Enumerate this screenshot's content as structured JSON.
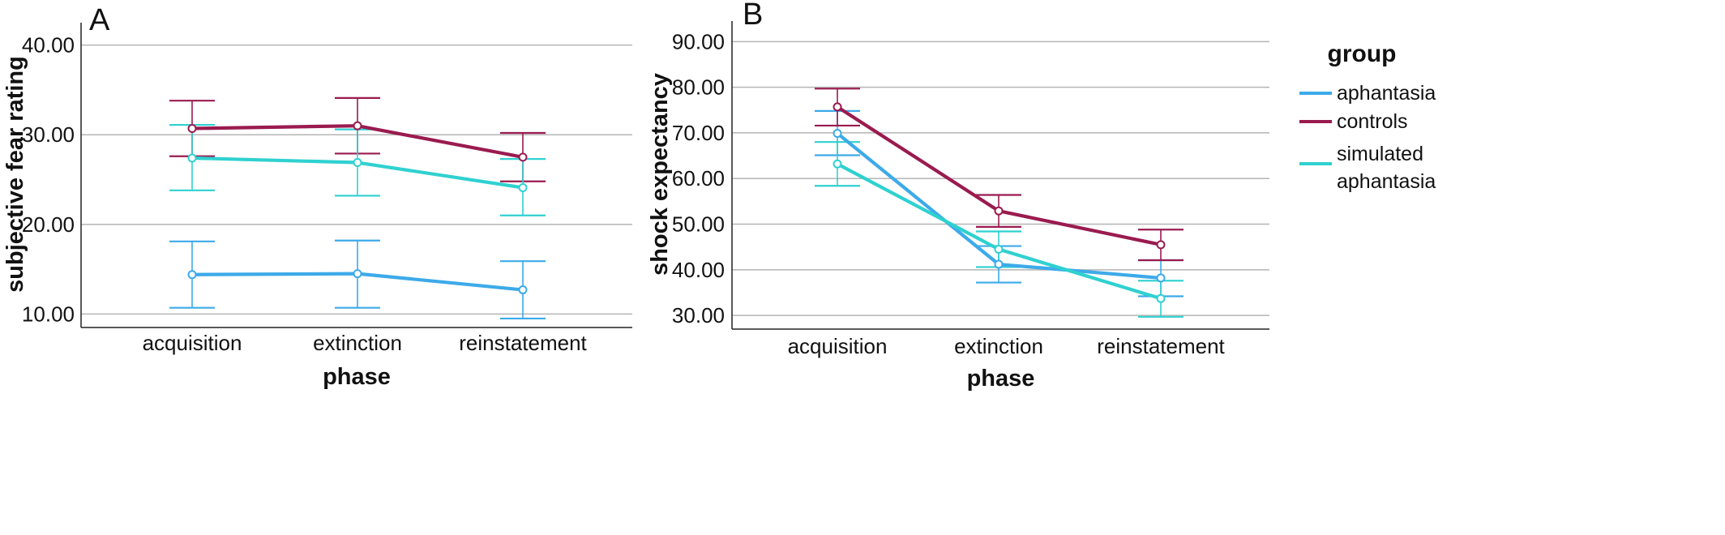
{
  "chart_data": [
    {
      "type": "line",
      "panel": "A",
      "xlabel": "phase",
      "ylabel": "subjective fear rating",
      "categories": [
        "acquisition",
        "extinction",
        "reinstatement"
      ],
      "ylim": [
        8.5,
        42.5
      ],
      "yticks": [
        10,
        20,
        30,
        40
      ],
      "ytick_labels": [
        "10.00",
        "20.00",
        "30.00",
        "40.00"
      ],
      "grid": "horizontal",
      "series": [
        {
          "name": "aphantasia",
          "color": "#3daae9",
          "values": [
            14.4,
            14.5,
            12.7
          ],
          "err_low": [
            10.7,
            10.7,
            9.5
          ],
          "err_high": [
            18.1,
            18.2,
            15.9
          ]
        },
        {
          "name": "controls",
          "color": "#9a1b4f",
          "values": [
            30.7,
            31.0,
            27.5
          ],
          "err_low": [
            27.6,
            27.9,
            24.8
          ],
          "err_high": [
            33.8,
            34.1,
            30.2
          ]
        },
        {
          "name": "simulated aphantasia",
          "color": "#2fd1d0",
          "values": [
            27.4,
            26.9,
            24.1
          ],
          "err_low": [
            23.8,
            23.2,
            21.0
          ],
          "err_high": [
            31.1,
            30.6,
            27.3
          ]
        }
      ]
    },
    {
      "type": "line",
      "panel": "B",
      "xlabel": "phase",
      "ylabel": "shock expectancy",
      "categories": [
        "acquisition",
        "extinction",
        "reinstatement"
      ],
      "ylim": [
        27.0,
        94.5
      ],
      "yticks": [
        30,
        40,
        50,
        60,
        70,
        80,
        90
      ],
      "ytick_labels": [
        "30.00",
        "40.00",
        "50.00",
        "60.00",
        "70.00",
        "80.00",
        "90.00"
      ],
      "grid": "horizontal",
      "legend_position": "top-right",
      "series": [
        {
          "name": "aphantasia",
          "color": "#3daae9",
          "values": [
            69.9,
            41.2,
            38.2
          ],
          "err_low": [
            65.1,
            37.2,
            34.2
          ],
          "err_high": [
            74.8,
            45.2,
            42.1
          ]
        },
        {
          "name": "controls",
          "color": "#9a1b4f",
          "values": [
            75.7,
            52.9,
            45.5
          ],
          "err_low": [
            71.6,
            49.4,
            42.1
          ],
          "err_high": [
            79.7,
            56.4,
            48.8
          ]
        },
        {
          "name": "simulated aphantasia",
          "color": "#2fd1d0",
          "values": [
            63.2,
            44.5,
            33.7
          ],
          "err_low": [
            58.4,
            40.6,
            29.7
          ],
          "err_high": [
            68.0,
            48.4,
            37.6
          ]
        }
      ]
    }
  ],
  "legend": {
    "title": "group",
    "items": [
      {
        "lines": [
          "aphantasia"
        ],
        "color": "#3daae9"
      },
      {
        "lines": [
          "controls"
        ],
        "color": "#9a1b4f"
      },
      {
        "lines": [
          "simulated",
          "aphantasia"
        ],
        "color": "#2fd1d0"
      }
    ]
  }
}
